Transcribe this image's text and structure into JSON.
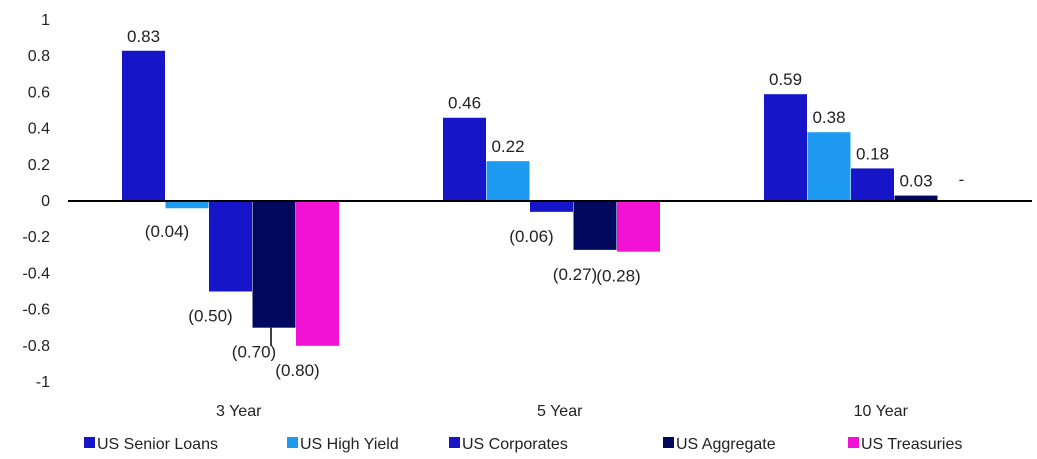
{
  "chart_data": {
    "type": "bar",
    "title": "",
    "xlabel": "",
    "ylabel": "",
    "ylim": [
      -1,
      1
    ],
    "yticks": [
      1,
      0.8,
      0.6,
      0.4,
      0.2,
      0,
      -0.2,
      -0.4,
      -0.6,
      -0.8,
      -1
    ],
    "ytick_labels": [
      "1",
      "0.8",
      "0.6",
      "0.4",
      "0.2",
      "0",
      "-0.2",
      "-0.4",
      "-0.6",
      "-0.8",
      "-1"
    ],
    "categories": [
      "3 Year",
      "5 Year",
      "10 Year"
    ],
    "grid": false,
    "legend_position": "bottom",
    "series": [
      {
        "name": "US Senior Loans",
        "color": "#1616c8",
        "values": [
          0.83,
          0.46,
          0.59
        ],
        "labels": [
          "0.83",
          "0.46",
          "0.59"
        ]
      },
      {
        "name": "US High Yield",
        "color": "#1e9bf0",
        "values": [
          -0.04,
          0.22,
          0.38
        ],
        "labels": [
          "(0.04)",
          "0.22",
          "0.38"
        ]
      },
      {
        "name": "US Corporates",
        "color": "#1616c8",
        "values": [
          -0.5,
          -0.06,
          0.18
        ],
        "labels": [
          "(0.50)",
          "(0.06)",
          "0.18"
        ]
      },
      {
        "name": "US Aggregate",
        "color": "#00095e",
        "values": [
          -0.7,
          -0.27,
          0.03
        ],
        "labels": [
          "(0.70)",
          "(0.27)",
          "0.03"
        ]
      },
      {
        "name": "US Treasuries",
        "color": "#f212d6",
        "values": [
          -0.8,
          -0.28,
          0
        ],
        "labels": [
          "(0.80)",
          "(0.28)",
          "-"
        ]
      }
    ]
  }
}
